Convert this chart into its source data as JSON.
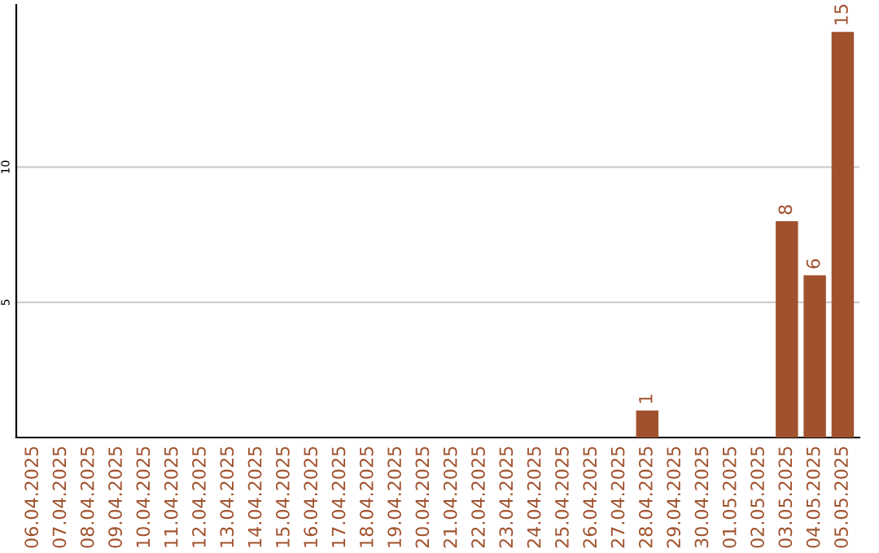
{
  "chart_data": {
    "type": "bar",
    "categories": [
      "06.04.2025",
      "07.04.2025",
      "08.04.2025",
      "09.04.2025",
      "10.04.2025",
      "11.04.2025",
      "12.04.2025",
      "13.04.2025",
      "14.04.2025",
      "15.04.2025",
      "16.04.2025",
      "17.04.2025",
      "18.04.2025",
      "19.04.2025",
      "20.04.2025",
      "21.04.2025",
      "22.04.2025",
      "23.04.2025",
      "24.04.2025",
      "25.04.2025",
      "26.04.2025",
      "27.04.2025",
      "28.04.2025",
      "29.04.2025",
      "30.04.2025",
      "01.05.2025",
      "02.05.2025",
      "03.05.2025",
      "04.05.2025",
      "05.05.2025"
    ],
    "values": [
      0,
      0,
      0,
      0,
      0,
      0,
      0,
      0,
      0,
      0,
      0,
      0,
      0,
      0,
      0,
      0,
      0,
      0,
      0,
      0,
      0,
      0,
      1,
      0,
      0,
      0,
      0,
      8,
      6,
      15
    ],
    "value_labels": [
      null,
      null,
      null,
      null,
      null,
      null,
      null,
      null,
      null,
      null,
      null,
      null,
      null,
      null,
      null,
      null,
      null,
      null,
      null,
      null,
      null,
      null,
      "1",
      null,
      null,
      null,
      null,
      "8",
      "6",
      "15"
    ],
    "color": "#a0522d",
    "ylim": [
      0,
      16
    ],
    "yticks": [
      5,
      10
    ],
    "grid": "y"
  }
}
